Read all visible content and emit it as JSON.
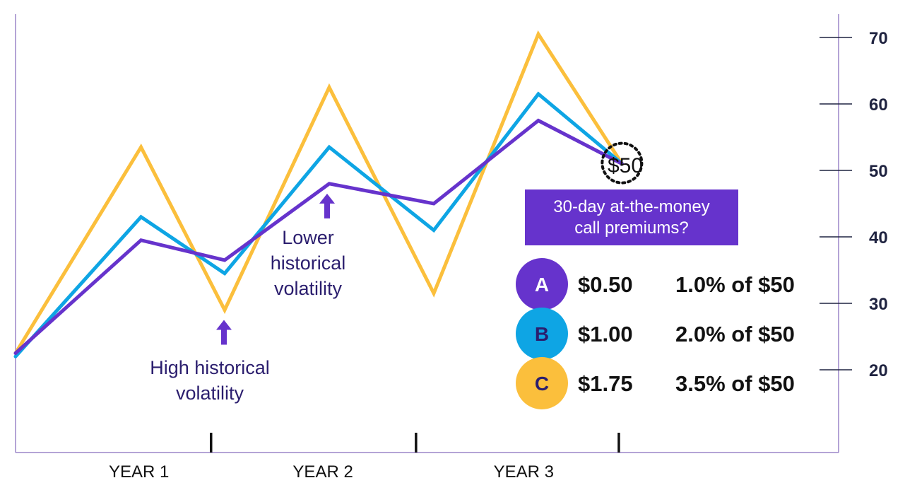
{
  "chart_data": {
    "type": "line",
    "title": "",
    "xlabel": "",
    "ylabel": "",
    "ylim": [
      10,
      75
    ],
    "y_ticks": [
      20,
      30,
      40,
      50,
      60,
      70
    ],
    "y_axis_position": "right",
    "grid": false,
    "x_labels": [
      "YEAR 1",
      "YEAR 2",
      "YEAR 3"
    ],
    "x": [
      0,
      0.6,
      1.0,
      1.5,
      2.0,
      2.5,
      2.9
    ],
    "series": [
      {
        "color": "#fbbf3c",
        "values": [
          22.5,
          53.5,
          29.0,
          62.5,
          31.5,
          70.5,
          51.0
        ]
      },
      {
        "color": "#0ea5e4",
        "values": [
          22.0,
          43.0,
          34.5,
          53.5,
          41.0,
          61.5,
          51.0
        ]
      },
      {
        "color": "#6633cc",
        "values": [
          22.5,
          39.5,
          36.5,
          48.0,
          45.0,
          57.5,
          51.0
        ]
      }
    ],
    "annotations": {
      "high_vol": {
        "lines": [
          "High historical",
          "volatility"
        ],
        "x": 1.0,
        "arrow_tip_y": 27.5
      },
      "low_vol": {
        "lines": [
          "Lower",
          "historical",
          "volatility"
        ],
        "x": 1.5,
        "arrow_tip_y": 46.5
      },
      "current_price": {
        "label": "$50",
        "x": 2.9,
        "y": 51.0
      }
    },
    "callout": {
      "lines": [
        "30-day at-the-money",
        "call premiums?"
      ],
      "color": "#6633cc"
    },
    "options": [
      {
        "letter": "A",
        "price": "$0.50",
        "pct": "1.0% of $50",
        "color": "#6633cc",
        "letter_color": "#ffffff"
      },
      {
        "letter": "B",
        "price": "$1.00",
        "pct": "2.0% of $50",
        "color": "#0ea5e4",
        "letter_color": "#2b1e6e"
      },
      {
        "letter": "C",
        "price": "$1.75",
        "pct": "3.5% of $50",
        "color": "#fbbf3c",
        "letter_color": "#2b1e6e"
      }
    ],
    "colors": {
      "axis": "#9b86c9",
      "tick": "#1f2340",
      "arrow": "#6633cc"
    }
  }
}
